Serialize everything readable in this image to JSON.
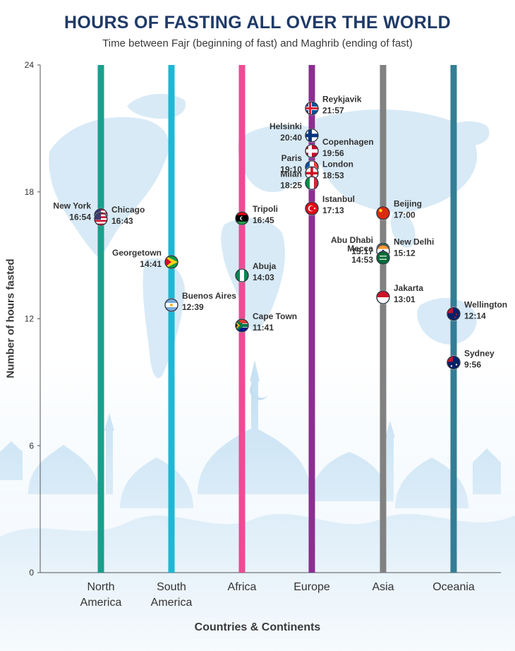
{
  "chart_data": {
    "type": "scatter",
    "title": "HOURS OF FASTING ALL OVER THE WORLD",
    "subtitle": "Time between Fajr (beginning of fast) and Maghrib (ending of fast)",
    "ylabel": "Number of hours fasted",
    "xlabel": "Countries & Continents",
    "ylim": [
      0,
      24
    ],
    "yticks": [
      "0",
      "6",
      "12",
      "18",
      "24"
    ],
    "categories": [
      {
        "name": "North\nAmerica",
        "color": "#18a08d"
      },
      {
        "name": "South\nAmerica",
        "color": "#21b6d3"
      },
      {
        "name": "Africa",
        "color": "#ec4c94"
      },
      {
        "name": "Europe",
        "color": "#8b2e91"
      },
      {
        "name": "Asia",
        "color": "#818181"
      },
      {
        "name": "Oceania",
        "color": "#337e95"
      }
    ],
    "points": [
      {
        "continent": 0,
        "city": "New York",
        "time": "16:54",
        "hours": 16.9,
        "flag": "us-flag-icon",
        "side": "left"
      },
      {
        "continent": 0,
        "city": "Chicago",
        "time": "16:43",
        "hours": 16.717,
        "flag": "us-flag-icon",
        "side": "right"
      },
      {
        "continent": 1,
        "city": "Georgetown",
        "time": "14:41",
        "hours": 14.683,
        "flag": "guyana-flag-icon",
        "side": "left"
      },
      {
        "continent": 1,
        "city": "Buenos Aires",
        "time": "12:39",
        "hours": 12.65,
        "flag": "argentina-flag-icon",
        "side": "right"
      },
      {
        "continent": 2,
        "city": "Tripoli",
        "time": "16:45",
        "hours": 16.75,
        "flag": "libya-flag-icon",
        "side": "right"
      },
      {
        "continent": 2,
        "city": "Abuja",
        "time": "14:03",
        "hours": 14.05,
        "flag": "nigeria-flag-icon",
        "side": "right"
      },
      {
        "continent": 2,
        "city": "Cape Town",
        "time": "11:41",
        "hours": 11.683,
        "flag": "south-africa-flag-icon",
        "side": "right"
      },
      {
        "continent": 3,
        "city": "Reykjavik",
        "time": "21:57",
        "hours": 21.95,
        "flag": "iceland-flag-icon",
        "side": "right"
      },
      {
        "continent": 3,
        "city": "Helsinki",
        "time": "20:40",
        "hours": 20.667,
        "flag": "finland-flag-icon",
        "side": "left"
      },
      {
        "continent": 3,
        "city": "Copenhagen",
        "time": "19:56",
        "hours": 19.933,
        "flag": "denmark-flag-icon",
        "side": "right"
      },
      {
        "continent": 3,
        "city": "Paris",
        "time": "19:10",
        "hours": 19.167,
        "flag": "france-flag-icon",
        "side": "left"
      },
      {
        "continent": 3,
        "city": "London",
        "time": "18:53",
        "hours": 18.883,
        "flag": "england-flag-icon",
        "side": "right"
      },
      {
        "continent": 3,
        "city": "Milan",
        "time": "18:25",
        "hours": 18.417,
        "flag": "italy-flag-icon",
        "side": "left"
      },
      {
        "continent": 3,
        "city": "Istanbul",
        "time": "17:13",
        "hours": 17.217,
        "flag": "turkey-flag-icon",
        "side": "right"
      },
      {
        "continent": 4,
        "city": "Beijing",
        "time": "17:00",
        "hours": 17.0,
        "flag": "china-flag-icon",
        "side": "right"
      },
      {
        "continent": 4,
        "city": "Abu Dhabi",
        "time": "15:17",
        "hours": 15.283,
        "flag": "uae-flag-icon",
        "side": "left"
      },
      {
        "continent": 4,
        "city": "New Delhi",
        "time": "15:12",
        "hours": 15.2,
        "flag": "india-flag-icon",
        "side": "right"
      },
      {
        "continent": 4,
        "city": "Mecca",
        "time": "14:53",
        "hours": 14.883,
        "flag": "saudi-flag-icon",
        "side": "left"
      },
      {
        "continent": 4,
        "city": "Jakarta",
        "time": "13:01",
        "hours": 13.017,
        "flag": "indonesia-flag-icon",
        "side": "right"
      },
      {
        "continent": 5,
        "city": "Wellington",
        "time": "12:14",
        "hours": 12.233,
        "flag": "new-zealand-flag-icon",
        "side": "right"
      },
      {
        "continent": 5,
        "city": "Sydney",
        "time": "9:56",
        "hours": 9.933,
        "flag": "australia-flag-icon",
        "side": "right"
      }
    ]
  }
}
